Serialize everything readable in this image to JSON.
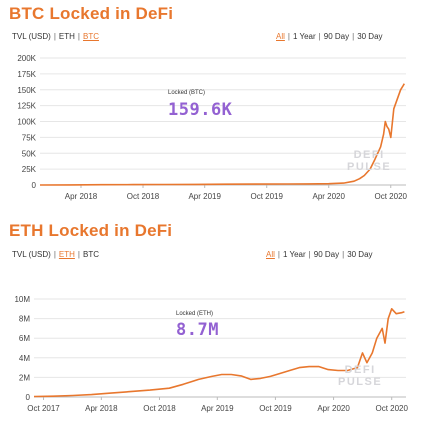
{
  "btc": {
    "title": "BTC Locked in DeFi",
    "units": {
      "tvl": "TVL (USD)",
      "eth": "ETH",
      "btc": "BTC",
      "active": "btc"
    },
    "ranges": {
      "all": "All",
      "year": "1 Year",
      "d90": "90 Day",
      "d30": "30 Day",
      "active": "all"
    },
    "tooltip": {
      "label": "Locked (BTC)",
      "value": "159.6K"
    },
    "watermark": {
      "line1": "DEFI",
      "line2": "PULSE"
    }
  },
  "eth": {
    "title": "ETH Locked in DeFi",
    "units": {
      "tvl": "TVL (USD)",
      "eth": "ETH",
      "btc": "BTC",
      "active": "eth"
    },
    "ranges": {
      "all": "All",
      "year": "1 Year",
      "d90": "90 Day",
      "d30": "30 Day",
      "active": "all"
    },
    "tooltip": {
      "label": "Locked (ETH)",
      "value": "8.7M"
    },
    "watermark": {
      "line1": "DEFI",
      "line2": "PULSE"
    }
  },
  "colors": {
    "accent": "#e8772e",
    "value": "#9361d2",
    "grid": "#e6e6e6"
  },
  "chart_data": [
    {
      "type": "line",
      "title": "BTC Locked in DeFi",
      "ylabel": "",
      "xlabel": "",
      "ylim": [
        0,
        200000
      ],
      "xlim": [
        "2017-12-01",
        "2020-11-15"
      ],
      "yticks": [
        0,
        25000,
        50000,
        75000,
        100000,
        125000,
        150000,
        175000,
        200000
      ],
      "ytick_labels": [
        "0",
        "25K",
        "50K",
        "75K",
        "100K",
        "125K",
        "150K",
        "175K",
        "200K"
      ],
      "xticks": [
        "2018-04-01",
        "2018-10-01",
        "2019-04-01",
        "2019-10-01",
        "2020-04-01",
        "2020-10-01"
      ],
      "xtick_labels": [
        "Apr 2018",
        "Oct 2018",
        "Apr 2019",
        "Oct 2019",
        "Apr 2020",
        "Oct 2020"
      ],
      "grid": true,
      "series": [
        {
          "x": [
            "2017-12-01",
            "2018-03-01",
            "2018-06-01",
            "2018-09-01",
            "2018-12-01",
            "2019-03-01",
            "2019-06-01",
            "2019-09-01",
            "2019-12-01",
            "2020-02-01",
            "2020-04-01",
            "2020-05-15",
            "2020-06-15",
            "2020-07-01",
            "2020-07-15",
            "2020-08-01",
            "2020-08-15",
            "2020-09-01",
            "2020-09-10",
            "2020-09-15",
            "2020-09-20",
            "2020-09-25",
            "2020-10-01",
            "2020-10-10",
            "2020-10-20",
            "2020-10-30",
            "2020-11-05",
            "2020-11-10"
          ],
          "values": [
            0,
            200,
            400,
            600,
            800,
            1000,
            1200,
            1400,
            1600,
            1800,
            2000,
            3000,
            6000,
            10000,
            15000,
            25000,
            40000,
            60000,
            80000,
            100000,
            92000,
            88000,
            75000,
            120000,
            135000,
            150000,
            155000,
            159600
          ]
        }
      ]
    },
    {
      "type": "line",
      "title": "ETH Locked in DeFi",
      "ylabel": "",
      "xlabel": "",
      "ylim": [
        0,
        10000000
      ],
      "xlim": [
        "2017-09-01",
        "2020-11-15"
      ],
      "yticks": [
        0,
        2000000,
        4000000,
        6000000,
        8000000,
        10000000
      ],
      "ytick_labels": [
        "0",
        "2M",
        "4M",
        "6M",
        "8M",
        "10M"
      ],
      "xticks": [
        "2017-10-01",
        "2018-04-01",
        "2018-10-01",
        "2019-04-01",
        "2019-10-01",
        "2020-04-01",
        "2020-10-01"
      ],
      "xtick_labels": [
        "Oct 2017",
        "Apr 2018",
        "Oct 2018",
        "Apr 2019",
        "Oct 2019",
        "Apr 2020",
        "Oct 2020"
      ],
      "grid": true,
      "series": [
        {
          "x": [
            "2017-09-01",
            "2017-11-01",
            "2018-01-01",
            "2018-03-01",
            "2018-05-01",
            "2018-07-01",
            "2018-09-01",
            "2018-11-01",
            "2018-12-15",
            "2019-02-01",
            "2019-03-15",
            "2019-04-15",
            "2019-05-15",
            "2019-06-15",
            "2019-07-15",
            "2019-08-15",
            "2019-09-15",
            "2019-10-15",
            "2019-11-15",
            "2019-12-15",
            "2020-01-15",
            "2020-02-15",
            "2020-03-15",
            "2020-04-15",
            "2020-05-15",
            "2020-06-15",
            "2020-07-01",
            "2020-07-15",
            "2020-08-01",
            "2020-08-15",
            "2020-09-01",
            "2020-09-10",
            "2020-09-20",
            "2020-10-01",
            "2020-10-15",
            "2020-11-01",
            "2020-11-10"
          ],
          "values": [
            50000,
            80000,
            150000,
            250000,
            400000,
            550000,
            700000,
            900000,
            1300000,
            1800000,
            2100000,
            2300000,
            2300000,
            2150000,
            1800000,
            1900000,
            2100000,
            2400000,
            2700000,
            3000000,
            3100000,
            3100000,
            2800000,
            2700000,
            2700000,
            3000000,
            4500000,
            3500000,
            4500000,
            6000000,
            7000000,
            5500000,
            8000000,
            9000000,
            8500000,
            8600000,
            8700000
          ]
        }
      ]
    }
  ]
}
